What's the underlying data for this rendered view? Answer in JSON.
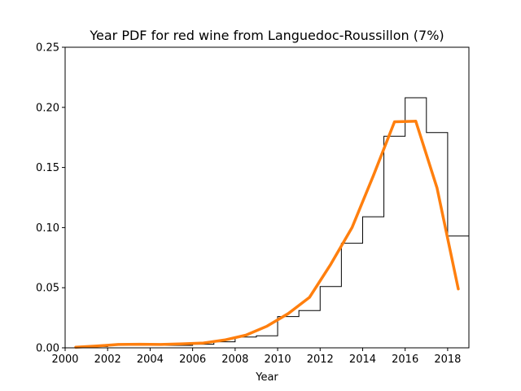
{
  "chart_data": {
    "type": "line",
    "title": "Year PDF for red wine from Languedoc-Roussillon (7%)",
    "xlabel": "Year",
    "ylabel": "",
    "xlim": [
      2000,
      2019
    ],
    "ylim": [
      0,
      0.25
    ],
    "grid": false,
    "x_ticks": [
      2000,
      2002,
      2004,
      2006,
      2008,
      2010,
      2012,
      2014,
      2016,
      2018
    ],
    "y_ticks": [
      0.0,
      0.05,
      0.1,
      0.15,
      0.2,
      0.25
    ],
    "x_tick_labels": [
      "2000",
      "2002",
      "2004",
      "2006",
      "2008",
      "2010",
      "2012",
      "2014",
      "2016",
      "2018"
    ],
    "y_tick_labels": [
      "0.00",
      "0.05",
      "0.10",
      "0.15",
      "0.20",
      "0.25"
    ],
    "series": [
      {
        "kind": "step-histogram",
        "color": "#000000",
        "bins": [
          {
            "x0": 2000,
            "x1": 2001,
            "y": 0.0
          },
          {
            "x0": 2001,
            "x1": 2002,
            "y": 0.001
          },
          {
            "x0": 2002,
            "x1": 2003,
            "y": 0.002
          },
          {
            "x0": 2003,
            "x1": 2004,
            "y": 0.002
          },
          {
            "x0": 2004,
            "x1": 2005,
            "y": 0.002
          },
          {
            "x0": 2005,
            "x1": 2006,
            "y": 0.002
          },
          {
            "x0": 2006,
            "x1": 2007,
            "y": 0.003
          },
          {
            "x0": 2007,
            "x1": 2008,
            "y": 0.005
          },
          {
            "x0": 2008,
            "x1": 2009,
            "y": 0.009
          },
          {
            "x0": 2009,
            "x1": 2010,
            "y": 0.01
          },
          {
            "x0": 2010,
            "x1": 2011,
            "y": 0.026
          },
          {
            "x0": 2011,
            "x1": 2012,
            "y": 0.031
          },
          {
            "x0": 2012,
            "x1": 2013,
            "y": 0.051
          },
          {
            "x0": 2013,
            "x1": 2014,
            "y": 0.087
          },
          {
            "x0": 2014,
            "x1": 2015,
            "y": 0.109
          },
          {
            "x0": 2015,
            "x1": 2016,
            "y": 0.176
          },
          {
            "x0": 2016,
            "x1": 2017,
            "y": 0.208
          },
          {
            "x0": 2017,
            "x1": 2018,
            "y": 0.179
          },
          {
            "x0": 2018,
            "x1": 2019,
            "y": 0.093
          }
        ]
      },
      {
        "kind": "line",
        "color": "#ff7f0e",
        "x": [
          2000.5,
          2001.5,
          2002.5,
          2003.5,
          2004.5,
          2005.5,
          2006.5,
          2007.5,
          2008.5,
          2009.5,
          2010.5,
          2011.5,
          2012.5,
          2013.5,
          2014.5,
          2015.5,
          2016.5,
          2017.5,
          2018.5
        ],
        "y": [
          0.0005,
          0.0015,
          0.0028,
          0.003,
          0.0028,
          0.0033,
          0.004,
          0.0065,
          0.0105,
          0.018,
          0.0285,
          0.042,
          0.0695,
          0.1,
          0.143,
          0.188,
          0.1885,
          0.133,
          0.049
        ]
      }
    ]
  }
}
